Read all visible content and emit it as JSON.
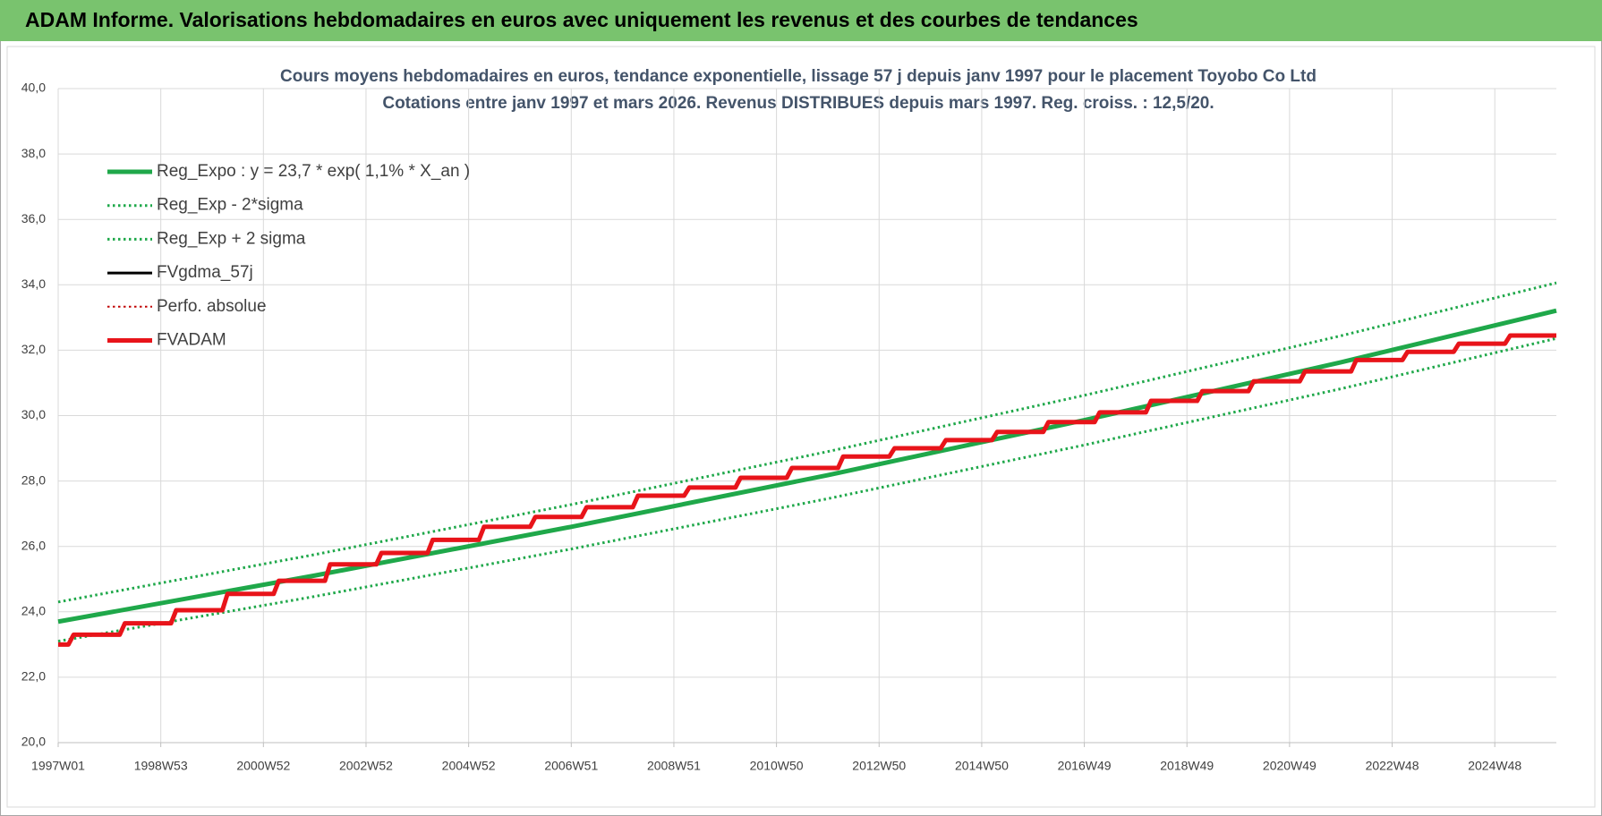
{
  "header": {
    "title": "ADAM Informe. Valorisations hebdomadaires en euros avec uniquement les revenus et des courbes de tendances"
  },
  "chart_data": {
    "type": "line",
    "title": "Cours moyens hebdomadaires en euros, tendance exponentielle, lissage 57 j depuis janv 1997  pour le placement Toyobo Co Ltd",
    "subtitle": "Cotations entre janv 1997 et mars 2026. Revenus DISTRIBUES depuis mars 1997. Reg. croiss. : 12,5/20.",
    "xlim": [
      1997,
      2026.2
    ],
    "ylim": [
      20,
      40
    ],
    "xticks": [
      {
        "value": 1997,
        "label": "1997W01"
      },
      {
        "value": 1999,
        "label": "1998W53"
      },
      {
        "value": 2001,
        "label": "2000W52"
      },
      {
        "value": 2003,
        "label": "2002W52"
      },
      {
        "value": 2005,
        "label": "2004W52"
      },
      {
        "value": 2007,
        "label": "2006W51"
      },
      {
        "value": 2009,
        "label": "2008W51"
      },
      {
        "value": 2011,
        "label": "2010W50"
      },
      {
        "value": 2013,
        "label": "2012W50"
      },
      {
        "value": 2015,
        "label": "2014W50"
      },
      {
        "value": 2017,
        "label": "2016W49"
      },
      {
        "value": 2019,
        "label": "2018W49"
      },
      {
        "value": 2021,
        "label": "2020W49"
      },
      {
        "value": 2023,
        "label": "2022W48"
      },
      {
        "value": 2025,
        "label": "2024W48"
      }
    ],
    "yticks": [
      {
        "value": 20,
        "label": "20,0"
      },
      {
        "value": 22,
        "label": "22,0"
      },
      {
        "value": 24,
        "label": "24,0"
      },
      {
        "value": 26,
        "label": "26,0"
      },
      {
        "value": 28,
        "label": "28,0"
      },
      {
        "value": 30,
        "label": "30,0"
      },
      {
        "value": 32,
        "label": "32,0"
      },
      {
        "value": 34,
        "label": "34,0"
      },
      {
        "value": 36,
        "label": "36,0"
      },
      {
        "value": 38,
        "label": "38,0"
      },
      {
        "value": 40,
        "label": "40,0"
      }
    ],
    "grid": true,
    "legend": "top-left",
    "x": [
      1997,
      1997.2,
      1997.3,
      1998.2,
      1998.3,
      1999.2,
      1999.3,
      2000.2,
      2000.3,
      2001.2,
      2001.3,
      2002.2,
      2002.3,
      2003.2,
      2003.3,
      2004.2,
      2004.3,
      2005.2,
      2005.3,
      2006.2,
      2006.3,
      2007.2,
      2007.3,
      2008.2,
      2008.3,
      2009.2,
      2009.3,
      2010.2,
      2010.3,
      2011.2,
      2011.3,
      2012.2,
      2012.3,
      2013.2,
      2013.3,
      2014.2,
      2014.3,
      2015.2,
      2015.3,
      2016.2,
      2016.3,
      2017.2,
      2017.3,
      2018.2,
      2018.3,
      2019.2,
      2019.3,
      2020.2,
      2020.3,
      2021.2,
      2021.3,
      2022.2,
      2022.3,
      2023.2,
      2023.3,
      2024.2,
      2024.3,
      2025.2,
      2025.3,
      2026.2
    ],
    "series": [
      {
        "name": "Reg_Expo : y = 23,7 * exp( 1,1% *  X_an )",
        "color": "#1fa84a",
        "style": "solid",
        "width": 5,
        "x": [
          1997,
          2002,
          2007,
          2012,
          2017,
          2022,
          2026.2
        ],
        "values": [
          23.7,
          25.11,
          26.6,
          28.18,
          29.86,
          31.63,
          33.21
        ]
      },
      {
        "name": "Reg_Exp - 2*sigma",
        "color": "#1fa84a",
        "style": "dotted",
        "width": 3,
        "x": [
          1997,
          2002,
          2007,
          2012,
          2017,
          2022,
          2026.2
        ],
        "values": [
          23.1,
          24.47,
          25.92,
          27.46,
          29.1,
          30.82,
          32.36
        ]
      },
      {
        "name": "Reg_Exp + 2 sigma",
        "color": "#1fa84a",
        "style": "dotted",
        "width": 3,
        "x": [
          1997,
          2002,
          2007,
          2012,
          2017,
          2022,
          2026.2
        ],
        "values": [
          24.3,
          25.75,
          27.28,
          28.9,
          30.62,
          32.44,
          34.06
        ]
      },
      {
        "name": "FVgdma_57j",
        "color": "#000000",
        "style": "solid",
        "width": 3,
        "values": [
          23.0,
          23.0,
          23.3,
          23.3,
          23.65,
          23.65,
          24.05,
          24.05,
          24.55,
          24.55,
          24.95,
          24.95,
          25.45,
          25.45,
          25.8,
          25.8,
          26.2,
          26.2,
          26.6,
          26.6,
          26.9,
          26.9,
          27.2,
          27.2,
          27.55,
          27.55,
          27.8,
          27.8,
          28.1,
          28.1,
          28.4,
          28.4,
          28.75,
          28.75,
          29.0,
          29.0,
          29.25,
          29.25,
          29.5,
          29.5,
          29.8,
          29.8,
          30.1,
          30.1,
          30.45,
          30.45,
          30.75,
          30.75,
          31.05,
          31.05,
          31.35,
          31.35,
          31.7,
          31.7,
          31.95,
          31.95,
          32.2,
          32.2,
          32.45,
          32.45
        ]
      },
      {
        "name": "Perfo. absolue",
        "color": "#c00000",
        "style": "dotted",
        "width": 2,
        "values": [
          23.0,
          23.0,
          23.3,
          23.3,
          23.65,
          23.65,
          24.05,
          24.05,
          24.55,
          24.55,
          24.95,
          24.95,
          25.45,
          25.45,
          25.8,
          25.8,
          26.2,
          26.2,
          26.6,
          26.6,
          26.9,
          26.9,
          27.2,
          27.2,
          27.55,
          27.55,
          27.8,
          27.8,
          28.1,
          28.1,
          28.4,
          28.4,
          28.75,
          28.75,
          29.0,
          29.0,
          29.25,
          29.25,
          29.5,
          29.5,
          29.8,
          29.8,
          30.1,
          30.1,
          30.45,
          30.45,
          30.75,
          30.75,
          31.05,
          31.05,
          31.35,
          31.35,
          31.7,
          31.7,
          31.95,
          31.95,
          32.2,
          32.2,
          32.45,
          32.45
        ]
      },
      {
        "name": "FVADAM",
        "color": "#e8141a",
        "style": "solid",
        "width": 5,
        "values": [
          23.0,
          23.0,
          23.3,
          23.3,
          23.65,
          23.65,
          24.05,
          24.05,
          24.55,
          24.55,
          24.95,
          24.95,
          25.45,
          25.45,
          25.8,
          25.8,
          26.2,
          26.2,
          26.6,
          26.6,
          26.9,
          26.9,
          27.2,
          27.2,
          27.55,
          27.55,
          27.8,
          27.8,
          28.1,
          28.1,
          28.4,
          28.4,
          28.75,
          28.75,
          29.0,
          29.0,
          29.25,
          29.25,
          29.5,
          29.5,
          29.8,
          29.8,
          30.1,
          30.1,
          30.45,
          30.45,
          30.75,
          30.75,
          31.05,
          31.05,
          31.35,
          31.35,
          31.7,
          31.7,
          31.95,
          31.95,
          32.2,
          32.2,
          32.45,
          32.45
        ]
      }
    ]
  }
}
